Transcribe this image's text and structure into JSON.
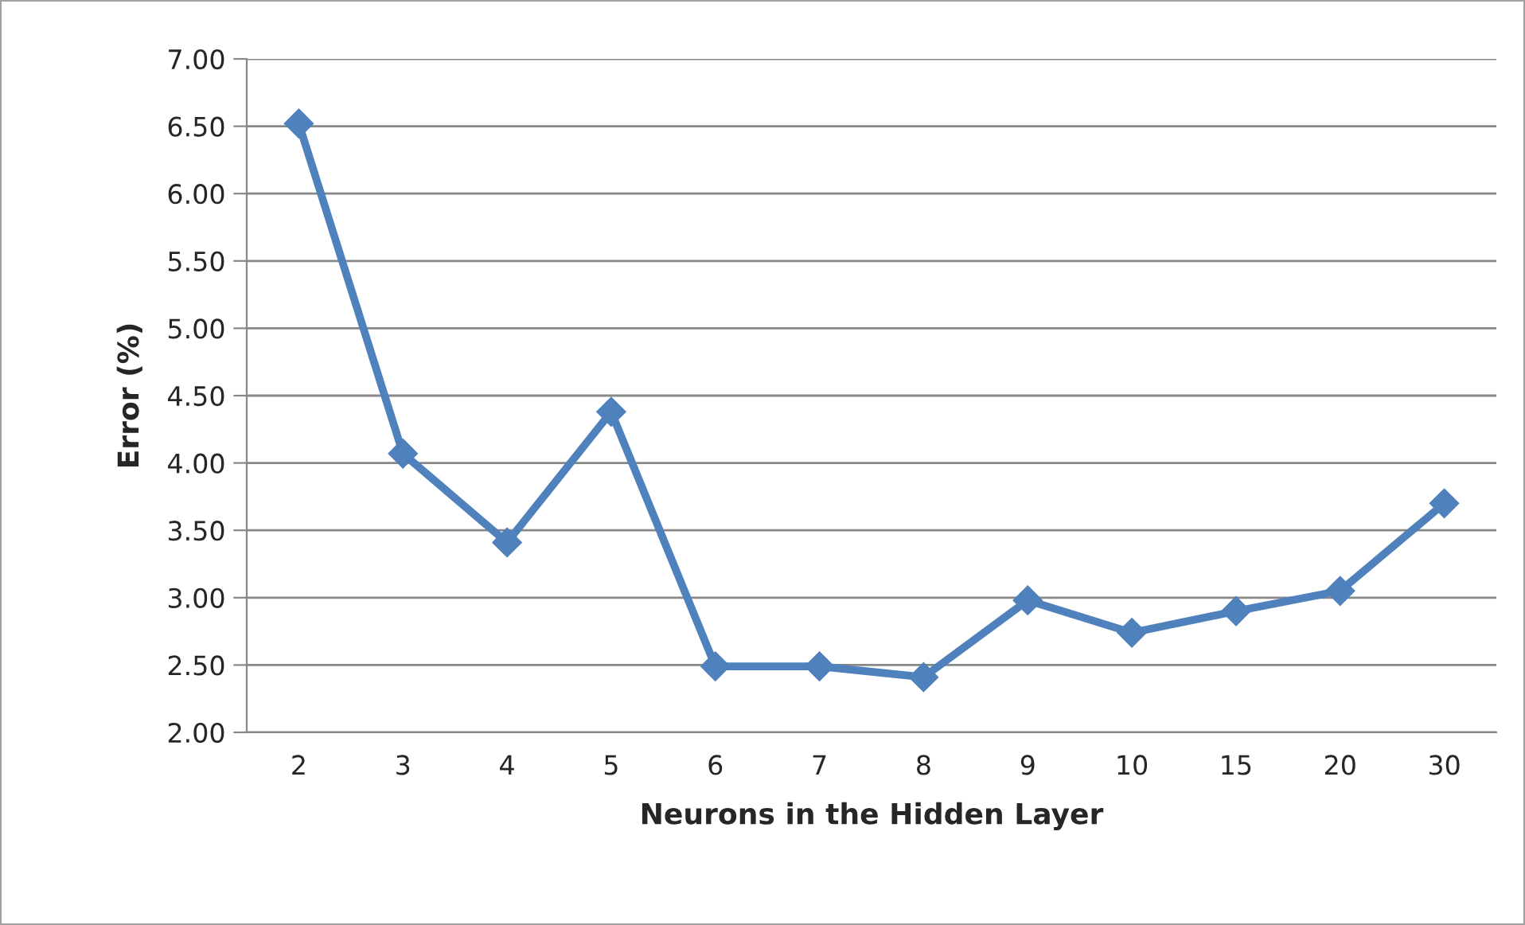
{
  "chart_data": {
    "type": "line",
    "xlabel": "Neurons in the Hidden Layer",
    "ylabel": "Error (%)",
    "categories": [
      "2",
      "3",
      "4",
      "5",
      "6",
      "7",
      "8",
      "9",
      "10",
      "15",
      "20",
      "30"
    ],
    "series": [
      {
        "color": "#4f81bd",
        "values": [
          6.52,
          4.07,
          3.41,
          4.38,
          2.49,
          2.49,
          2.41,
          2.98,
          2.74,
          2.9,
          3.05,
          3.7
        ]
      }
    ],
    "ylim": [
      2,
      7
    ],
    "yticks": [
      {
        "value": 2,
        "label": "2.00"
      },
      {
        "value": 2.5,
        "label": "2.50"
      },
      {
        "value": 3,
        "label": "3.00"
      },
      {
        "value": 3.5,
        "label": "3.50"
      },
      {
        "value": 4,
        "label": "4.00"
      },
      {
        "value": 4.5,
        "label": "4.50"
      },
      {
        "value": 5,
        "label": "5.00"
      },
      {
        "value": 5.5,
        "label": "5.50"
      },
      {
        "value": 6,
        "label": "6.00"
      },
      {
        "value": 6.5,
        "label": "6.50"
      },
      {
        "value": 7,
        "label": "7.00"
      }
    ],
    "grid": "y",
    "marker": "diamond",
    "line_style": "solid"
  }
}
